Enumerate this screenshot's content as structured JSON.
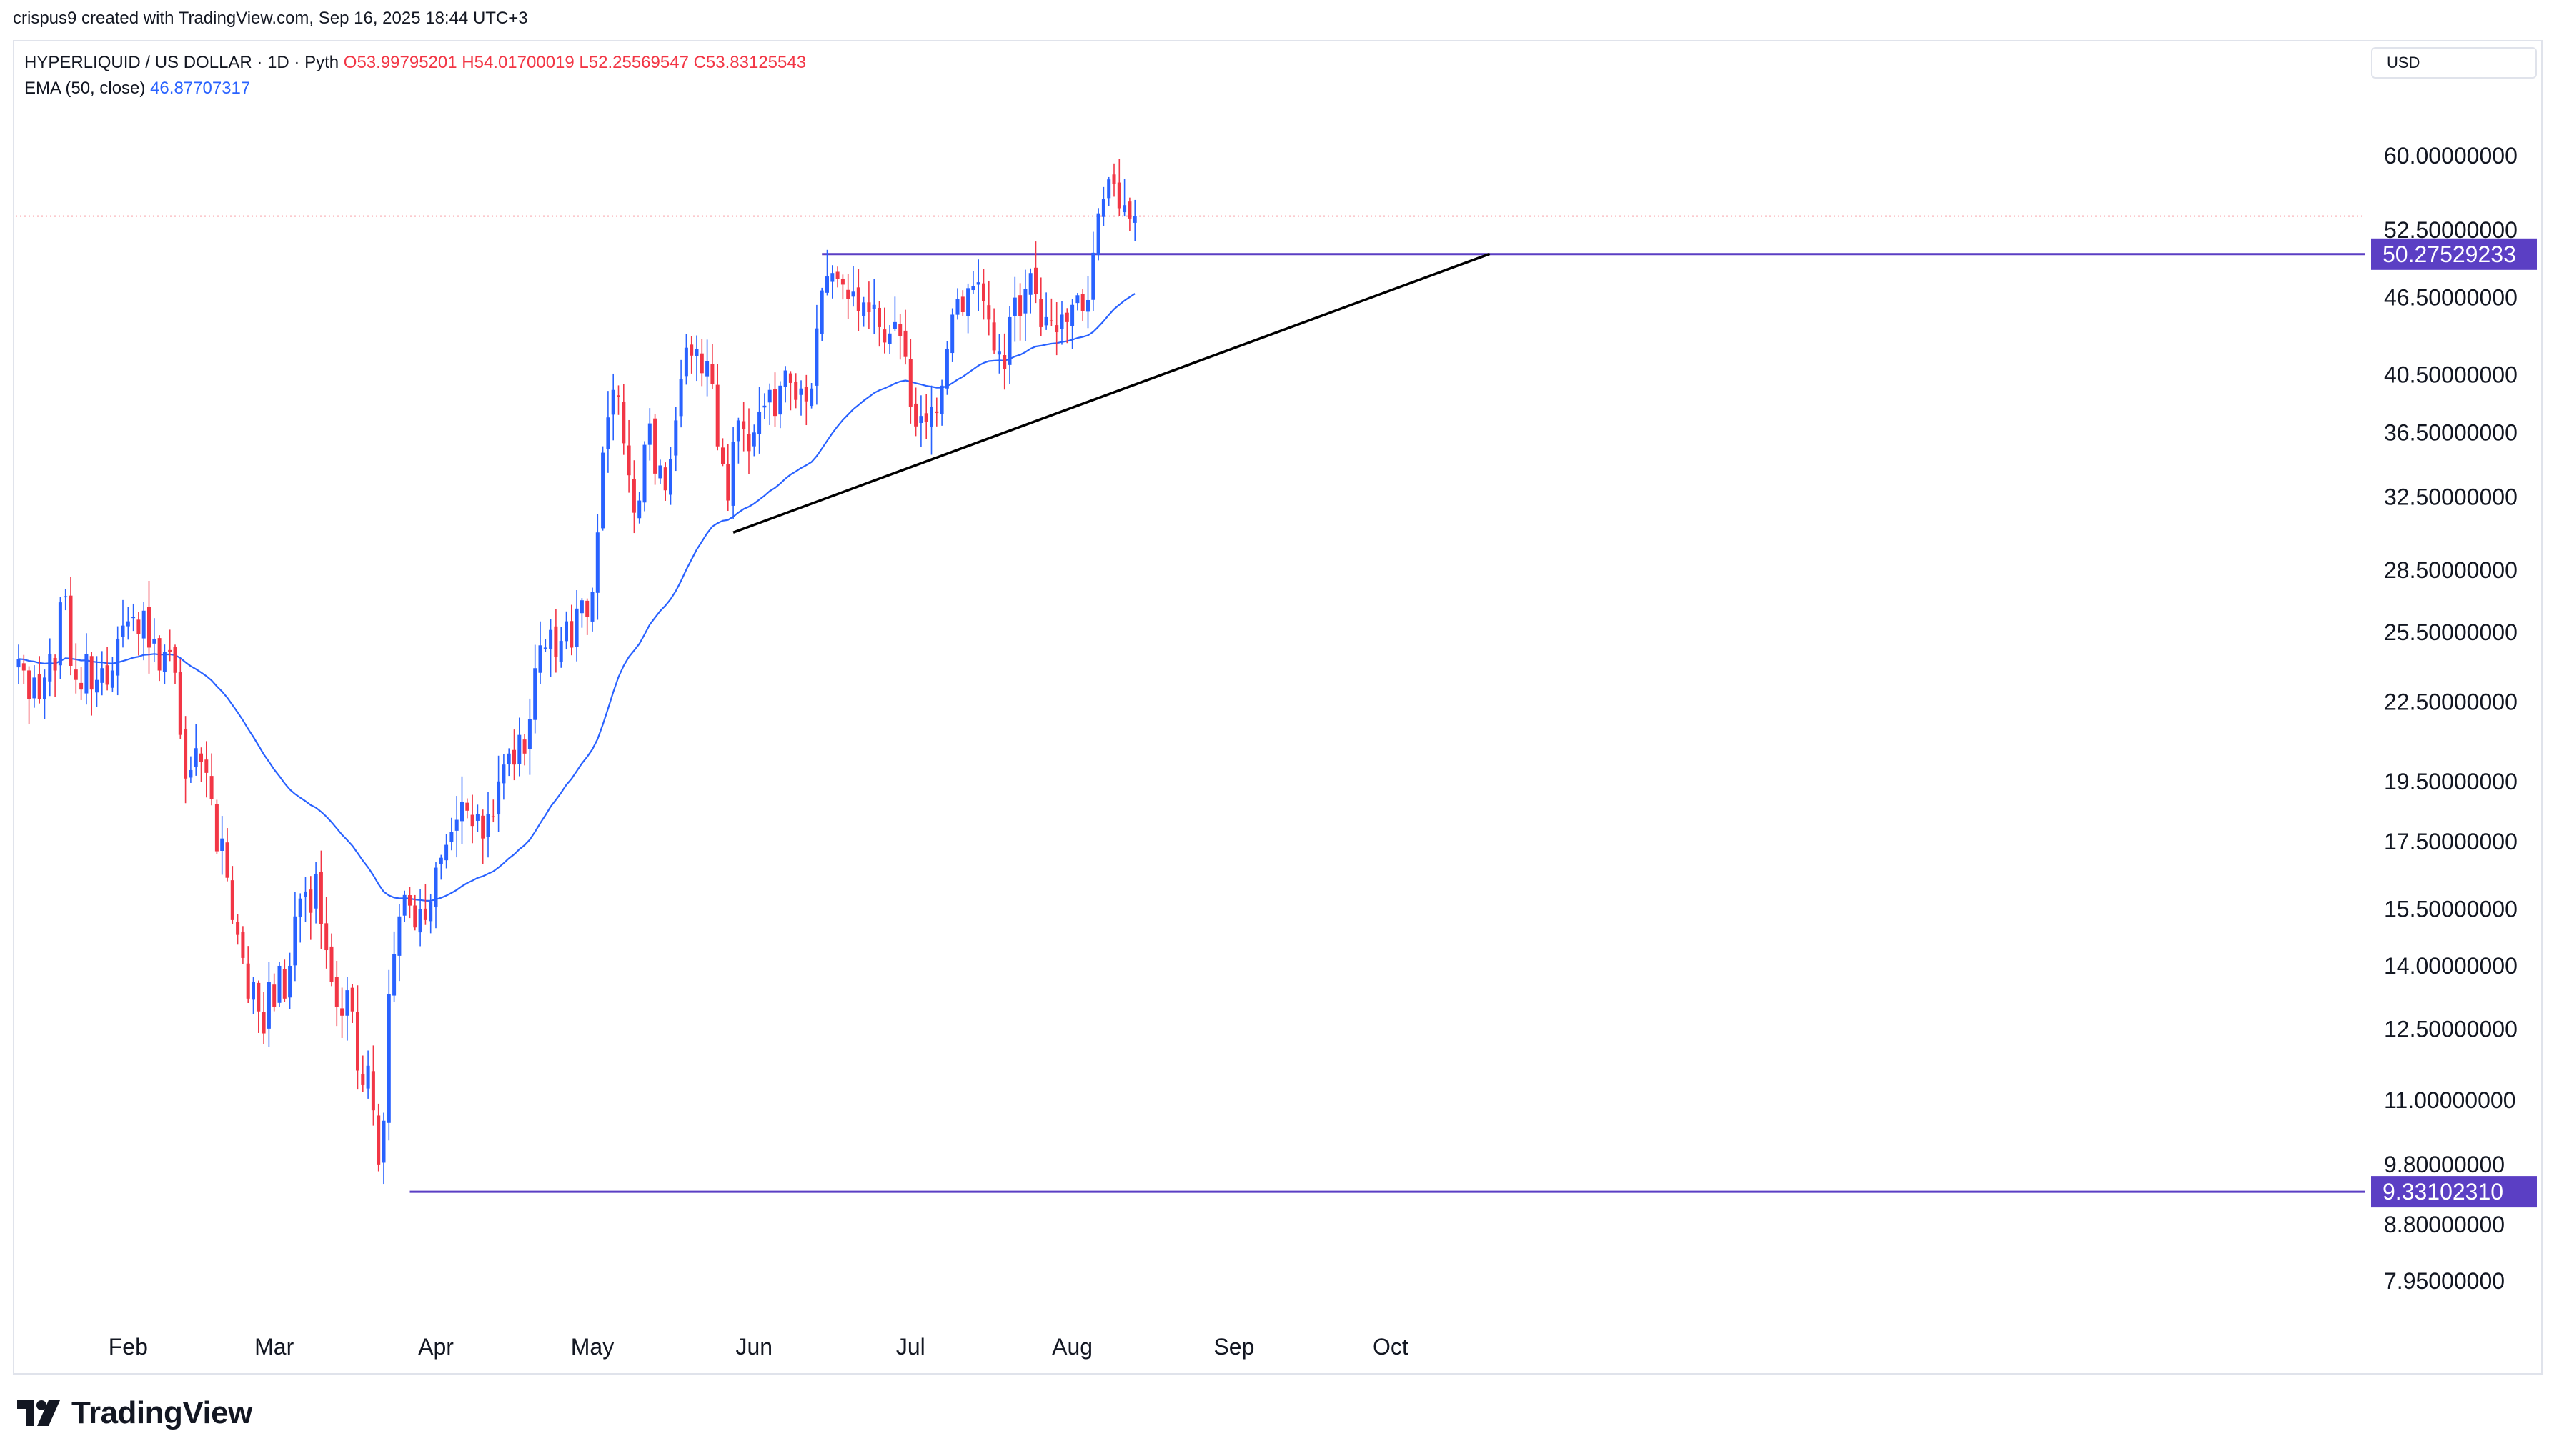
{
  "header": {
    "credit": "crispus9 created with TradingView.com, Sep 16, 2025 18:44 UTC+3"
  },
  "legend": {
    "symbol": "HYPERLIQUID / US DOLLAR · 1D · Pyth",
    "open": "O53.99795201",
    "high": "H54.01700019",
    "low": "L52.25569547",
    "close": "C53.83125543",
    "ema_label": "EMA (50, close)",
    "ema_value": "46.87707317"
  },
  "currency": "USD",
  "footer": {
    "brand": "TradingView"
  },
  "colors": {
    "up": "#2962ff",
    "down": "#f23645",
    "ema": "#2962ff",
    "level": "#5b3fc4",
    "trend": "#000000"
  },
  "chart_data": {
    "type": "candlestick",
    "scale": "log",
    "ylim": [
      7.6,
      63
    ],
    "x_labels": [
      "Feb",
      "Mar",
      "Apr",
      "May",
      "Jun",
      "Jul",
      "Aug",
      "Sep",
      "Oct"
    ],
    "y_ticks": [
      "60.00000000",
      "52.50000000",
      "46.50000000",
      "40.50000000",
      "36.50000000",
      "32.50000000",
      "28.50000000",
      "25.50000000",
      "22.50000000",
      "19.50000000",
      "17.50000000",
      "15.50000000",
      "14.00000000",
      "12.50000000",
      "11.00000000",
      "9.80000000",
      "8.80000000",
      "7.95000000"
    ],
    "price_levels": [
      {
        "label": "50.27529233",
        "value": 50.27529233
      },
      {
        "label": "9.33102310",
        "value": 9.3310231
      }
    ],
    "current_price": 53.83125543,
    "trendline": {
      "start": [
        "2025-05-28",
        30.5
      ],
      "end": [
        "2025-10-20",
        50.3
      ]
    },
    "closes": [
      24.3,
      23.8,
      22.6,
      23.5,
      22.6,
      23.5,
      24.5,
      23.8,
      26.9,
      27.2,
      24.0,
      23.4,
      23.0,
      24.5,
      23.0,
      23.4,
      23.9,
      23.2,
      23.8,
      25.2,
      25.8,
      26.0,
      26.2,
      25.4,
      26.5,
      24.8,
      25.2,
      23.8,
      24.6,
      24.6,
      23.7,
      21.2,
      19.6,
      19.9,
      20.7,
      20.2,
      19.8,
      18.9,
      17.2,
      17.6,
      16.4,
      15.2,
      14.8,
      14.2,
      13.2,
      13.6,
      12.9,
      12.4,
      13.6,
      13.0,
      14.0,
      13.2,
      14.0,
      15.3,
      15.8,
      16.0,
      15.4,
      16.5,
      15.1,
      14.4,
      13.6,
      13.0,
      12.8,
      13.4,
      12.9,
      11.6,
      11.3,
      11.7,
      10.8,
      9.8,
      10.6,
      13.3,
      14.3,
      15.3,
      15.9,
      15.6,
      15.0,
      15.5,
      15.2,
      15.7,
      16.7,
      17.0,
      17.4,
      17.8,
      18.2,
      18.8,
      18.5,
      18.0,
      18.4,
      17.6,
      18.4,
      18.3,
      19.5,
      20.1,
      20.5,
      20.1,
      21.2,
      20.5,
      21.8,
      23.9,
      24.9,
      24.8,
      25.6,
      24.4,
      25.1,
      26.0,
      24.8,
      26.6,
      27.0,
      26.2,
      27.4,
      30.5,
      35.2,
      37.5,
      39.4,
      38.9,
      35.8,
      33.8,
      31.6,
      32.3,
      35.7,
      37.1,
      33.9,
      34.4,
      32.9,
      34.8,
      37.3,
      40.2,
      42.5,
      41.9,
      42.4,
      40.6,
      41.5,
      39.8,
      35.6,
      34.5,
      32.3,
      35.9,
      37.3,
      36.7,
      35.3,
      36.5,
      37.9,
      38.3,
      39.4,
      37.6,
      39.7,
      40.8,
      39.9,
      38.7,
      39.5,
      38.6,
      39.5,
      44.0,
      47.1,
      48.3,
      48.6,
      48.1,
      47.6,
      46.4,
      47.0,
      45.4,
      46.1,
      45.3,
      45.9,
      44.1,
      42.9,
      43.6,
      44.5,
      43.4,
      41.8,
      38.2,
      36.9,
      37.6,
      37.2,
      38.2,
      37.8,
      39.7,
      42.4,
      45.1,
      46.4,
      45.3,
      47.3,
      47.5,
      47.8,
      46.2,
      44.7,
      42.3,
      42.2,
      40.9,
      44.9,
      46.5,
      45.0,
      47.2,
      48.6,
      46.8,
      44.1,
      44.9,
      44.6,
      43.7,
      45.1,
      44.5,
      45.9,
      46.7,
      45.4,
      46.3,
      50.4,
      54.1,
      55.5,
      57.5,
      57.0,
      54.6,
      54.9,
      53.6,
      53.8
    ]
  }
}
